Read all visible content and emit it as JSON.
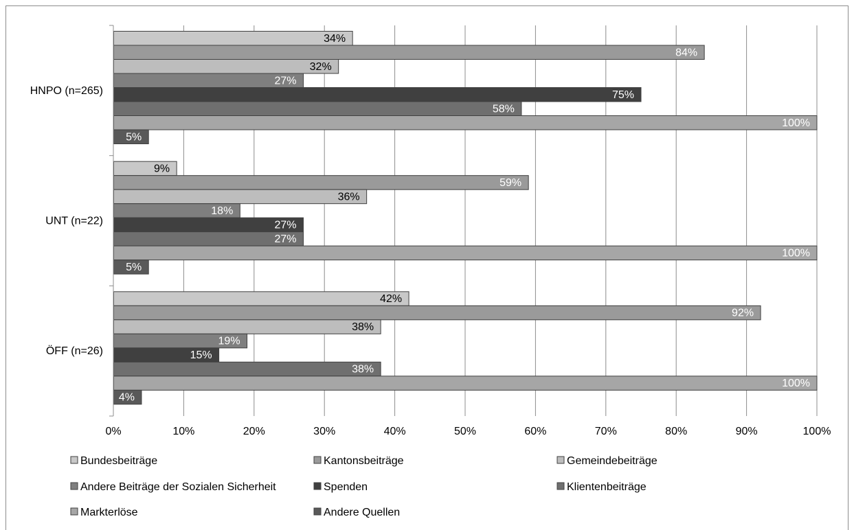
{
  "chart_data": {
    "type": "bar",
    "orientation": "horizontal",
    "categories": [
      "HNPO (n=265)",
      "UNT (n=22)",
      "ÖFF (n=26)"
    ],
    "series": [
      {
        "name": "Bundesbeiträge",
        "color": "#c8c8c8",
        "label_color": "#000000",
        "values": [
          34,
          9,
          42
        ]
      },
      {
        "name": "Kantonsbeiträge",
        "color": "#9a9a9a",
        "label_color": "#ffffff",
        "values": [
          84,
          59,
          92
        ]
      },
      {
        "name": "Gemeindebeiträge",
        "color": "#bdbdbd",
        "label_color": "#000000",
        "values": [
          32,
          36,
          38
        ]
      },
      {
        "name": "Andere Beiträge der Sozialen Sicherheit",
        "color": "#7f7f7f",
        "label_color": "#ffffff",
        "values": [
          27,
          18,
          19
        ]
      },
      {
        "name": "Spenden",
        "color": "#404040",
        "label_color": "#ffffff",
        "values": [
          75,
          27,
          15
        ]
      },
      {
        "name": "Klientenbeiträge",
        "color": "#6f6f6f",
        "label_color": "#ffffff",
        "values": [
          58,
          27,
          38
        ]
      },
      {
        "name": "Markterlöse",
        "color": "#a6a6a6",
        "label_color": "#ffffff",
        "values": [
          100,
          100,
          100
        ]
      },
      {
        "name": "Andere Quellen",
        "color": "#595959",
        "label_color": "#ffffff",
        "values": [
          5,
          5,
          4
        ]
      }
    ],
    "value_labels": [
      [
        "34%",
        "84%",
        "32%",
        "27%",
        "75%",
        "58%",
        "100%",
        "5%"
      ],
      [
        "9%",
        "59%",
        "36%",
        "18%",
        "27%",
        "27%",
        "100%",
        "5%"
      ],
      [
        "42%",
        "92%",
        "38%",
        "19%",
        "15%",
        "38%",
        "100%",
        "4%"
      ]
    ],
    "x_ticks": [
      "0%",
      "10%",
      "20%",
      "30%",
      "40%",
      "50%",
      "60%",
      "70%",
      "80%",
      "90%",
      "100%"
    ],
    "xlim": [
      0,
      100
    ],
    "grid": true,
    "legend_position": "bottom"
  }
}
